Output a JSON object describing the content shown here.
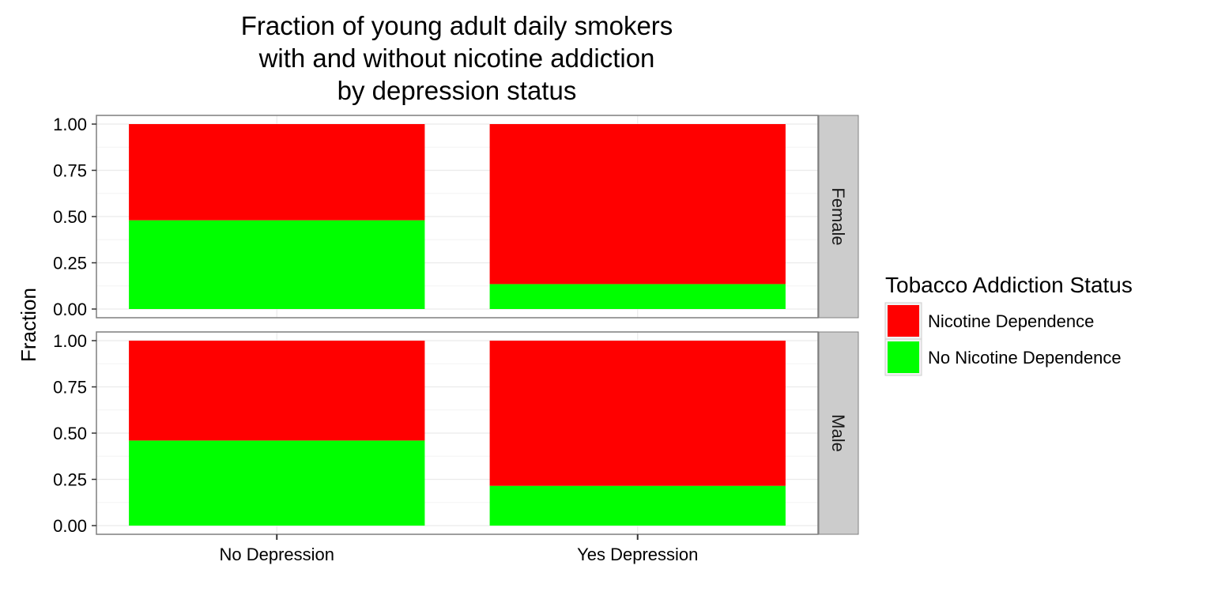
{
  "chart_data": {
    "type": "bar",
    "stacked": true,
    "title_lines": [
      "Fraction of young adult daily smokers",
      "with and without nicotine addiction",
      "by depression status"
    ],
    "xlabel": "",
    "ylabel": "Fraction",
    "ylim": [
      0,
      1
    ],
    "yticks": [
      "0.00",
      "0.25",
      "0.50",
      "0.75",
      "1.00"
    ],
    "ytick_values": [
      0,
      0.25,
      0.5,
      0.75,
      1.0
    ],
    "categories": [
      "No Depression",
      "Yes Depression"
    ],
    "grid": true,
    "facets": [
      {
        "label": "Female",
        "series": [
          {
            "name": "No Nicotine Dependence",
            "values": [
              0.48,
              0.135
            ]
          },
          {
            "name": "Nicotine Dependence",
            "values": [
              0.52,
              0.865
            ]
          }
        ]
      },
      {
        "label": "Male",
        "series": [
          {
            "name": "No Nicotine Dependence",
            "values": [
              0.46,
              0.215
            ]
          },
          {
            "name": "Nicotine Dependence",
            "values": [
              0.54,
              0.785
            ]
          }
        ]
      }
    ],
    "legend": {
      "title": "Tobacco Addiction Status",
      "placement": "right",
      "entries": [
        {
          "name": "Nicotine Dependence",
          "color": "#ff0000"
        },
        {
          "name": "No Nicotine Dependence",
          "color": "#00ff00"
        }
      ]
    },
    "colors": {
      "Nicotine Dependence": "#ff0000",
      "No Nicotine Dependence": "#00ff00",
      "strip_background": "#cccccc",
      "panel_border": "#7f7f7f",
      "grid": "#ebebeb"
    }
  }
}
